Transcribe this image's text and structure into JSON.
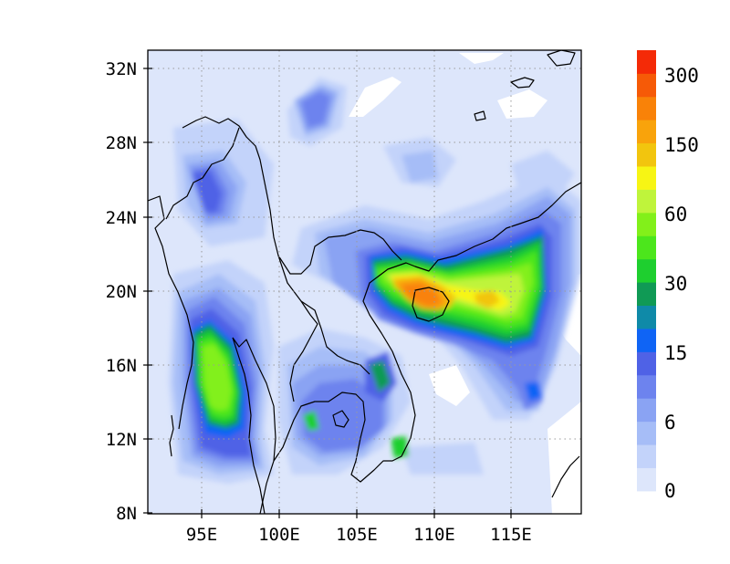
{
  "map": {
    "lat_labels": [
      "32N",
      "28N",
      "24N",
      "20N",
      "16N",
      "12N",
      "8N"
    ],
    "lon_labels": [
      "95E",
      "100E",
      "105E",
      "110E",
      "115E"
    ],
    "lat_range": [
      8,
      33
    ],
    "lon_range": [
      91.5,
      119.5
    ],
    "grid": "dotted"
  },
  "colorbar": {
    "colors": [
      "#dde6fb",
      "#c3d3fa",
      "#a6bdf7",
      "#8aa3f3",
      "#6d83ee",
      "#4f62e6",
      "#0f64f5",
      "#0f8aa8",
      "#109a55",
      "#1ecf2f",
      "#4ce61c",
      "#82f01a",
      "#bff43b",
      "#f7f514",
      "#f2c50e",
      "#f9a30b",
      "#f98208",
      "#f65a07",
      "#f42a07"
    ],
    "labels": [
      "0",
      "6",
      "15",
      "30",
      "60",
      "150",
      "300"
    ]
  }
}
